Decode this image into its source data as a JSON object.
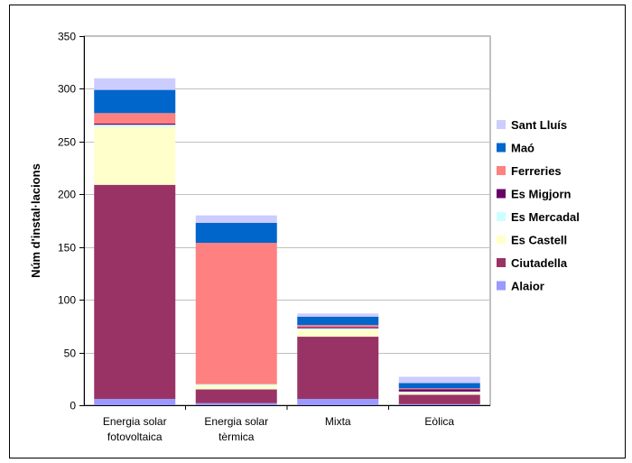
{
  "chart_data": {
    "type": "bar",
    "stacked": true,
    "title": "",
    "xlabel": "",
    "ylabel": "Núm d'instal·lacions",
    "ylim": [
      0,
      350
    ],
    "yticks": [
      0,
      50,
      100,
      150,
      200,
      250,
      300,
      350
    ],
    "grid": true,
    "legend_position": "right",
    "categories": [
      [
        "Energia solar",
        "fotovoltaica"
      ],
      [
        "Energia solar",
        "tèrmica"
      ],
      [
        "Mixta"
      ],
      [
        "Eòlica"
      ]
    ],
    "series": [
      {
        "name": "Alaior",
        "color": "#9999ff",
        "values": [
          6,
          2,
          6,
          1
        ]
      },
      {
        "name": "Ciutadella",
        "color": "#993366",
        "values": [
          203,
          13,
          59,
          9
        ]
      },
      {
        "name": "Es Castell",
        "color": "#ffffcc",
        "values": [
          55,
          4,
          7,
          2
        ]
      },
      {
        "name": "Es Mercadal",
        "color": "#ccffff",
        "values": [
          2,
          1,
          1,
          1
        ]
      },
      {
        "name": "Es Migjorn",
        "color": "#660066",
        "values": [
          1,
          0,
          1,
          2
        ]
      },
      {
        "name": "Ferreries",
        "color": "#ff8080",
        "values": [
          10,
          134,
          2,
          1
        ]
      },
      {
        "name": "Maó",
        "color": "#0066cc",
        "values": [
          22,
          19,
          8,
          5
        ]
      },
      {
        "name": "Sant Lluís",
        "color": "#ccccff",
        "values": [
          11,
          7,
          3,
          6
        ]
      }
    ]
  }
}
